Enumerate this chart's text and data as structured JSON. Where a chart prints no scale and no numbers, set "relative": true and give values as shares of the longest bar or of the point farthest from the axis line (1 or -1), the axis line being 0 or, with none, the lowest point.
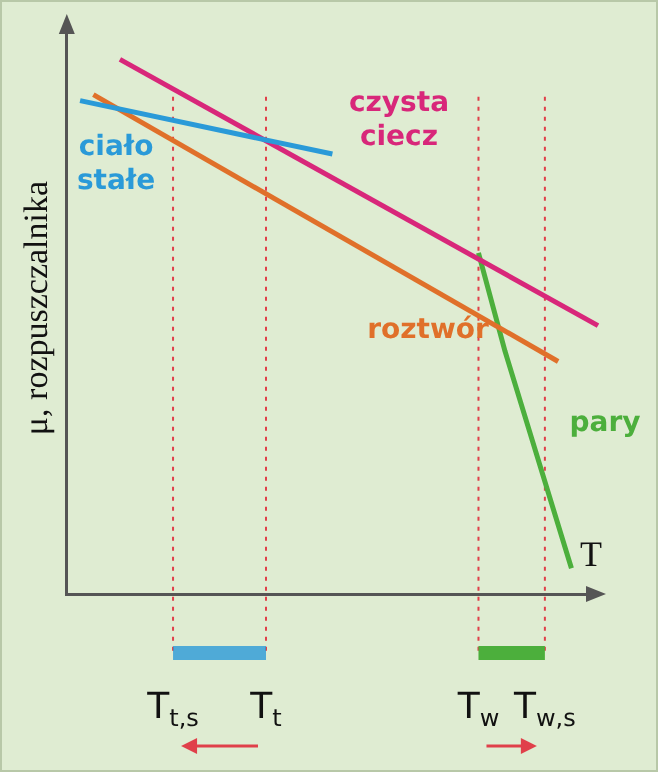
{
  "chart_data": {
    "type": "line",
    "relative": true,
    "ylabel": "μ, rozpuszczalnika",
    "xlabel": "T",
    "grid": false,
    "legend": false,
    "marker": "none",
    "line_style": "solid",
    "tick_labels": "x",
    "categories": [
      null,
      null,
      null,
      null,
      null,
      null,
      null,
      null,
      "T$_{t,s}$",
      null,
      null,
      null,
      null,
      null,
      null,
      "T$_{t}$",
      null,
      null,
      null,
      null,
      null,
      null,
      null,
      null,
      null,
      null,
      null,
      null,
      null,
      null,
      null,
      "T$_{w}$",
      null,
      null,
      null,
      null,
      "T$_{w,s}$",
      null,
      null,
      null,
      null
    ],
    "series": [
      {
        "name": "ciało stałe",
        "color": "#2a9ad8",
        "values": [
          null,
          0.923,
          null,
          null,
          null,
          null,
          null,
          null,
          null,
          null,
          null,
          null,
          null,
          null,
          null,
          null,
          null,
          null,
          null,
          null,
          0.823,
          null,
          null,
          null,
          null,
          null,
          null,
          null,
          null,
          null,
          null,
          null,
          null,
          null,
          null,
          null,
          null,
          null,
          null,
          null,
          null
        ]
      },
      {
        "name": "czysta ciecz",
        "color": "#d8277a",
        "values": [
          null,
          null,
          null,
          null,
          1.0,
          null,
          null,
          null,
          null,
          null,
          null,
          null,
          null,
          null,
          null,
          null,
          null,
          null,
          null,
          null,
          null,
          null,
          null,
          null,
          null,
          null,
          null,
          null,
          null,
          null,
          null,
          null,
          null,
          null,
          null,
          null,
          null,
          null,
          null,
          null,
          0.502
        ]
      },
      {
        "name": "roztwór",
        "color": "#e0702a",
        "values": [
          null,
          null,
          0.934,
          null,
          null,
          null,
          null,
          null,
          null,
          null,
          null,
          null,
          null,
          null,
          null,
          null,
          null,
          null,
          null,
          null,
          null,
          null,
          null,
          null,
          null,
          null,
          null,
          null,
          null,
          null,
          null,
          null,
          null,
          null,
          null,
          null,
          null,
          0.435,
          null,
          null,
          null
        ]
      },
      {
        "name": "pary",
        "color": "#4caf3c",
        "values": [
          null,
          null,
          null,
          null,
          null,
          null,
          null,
          null,
          null,
          null,
          null,
          null,
          null,
          null,
          null,
          null,
          null,
          null,
          null,
          null,
          null,
          null,
          null,
          null,
          null,
          null,
          null,
          null,
          null,
          null,
          null,
          0.638,
          null,
          0.454,
          null,
          null,
          null,
          null,
          0.048,
          null,
          null
        ]
      }
    ],
    "ref_lines": [
      {
        "axis": "x",
        "value": "T$_{t,s}$",
        "color": "#e0404a",
        "line_style": "dotted"
      },
      {
        "axis": "x",
        "value": "T$_{t}$",
        "color": "#e0404a",
        "line_style": "dotted"
      },
      {
        "axis": "x",
        "value": "T$_{w}$",
        "color": "#e0404a",
        "line_style": "dotted"
      },
      {
        "axis": "x",
        "value": "T$_{w,s}$",
        "color": "#e0404a",
        "line_style": "dotted"
      }
    ]
  }
}
